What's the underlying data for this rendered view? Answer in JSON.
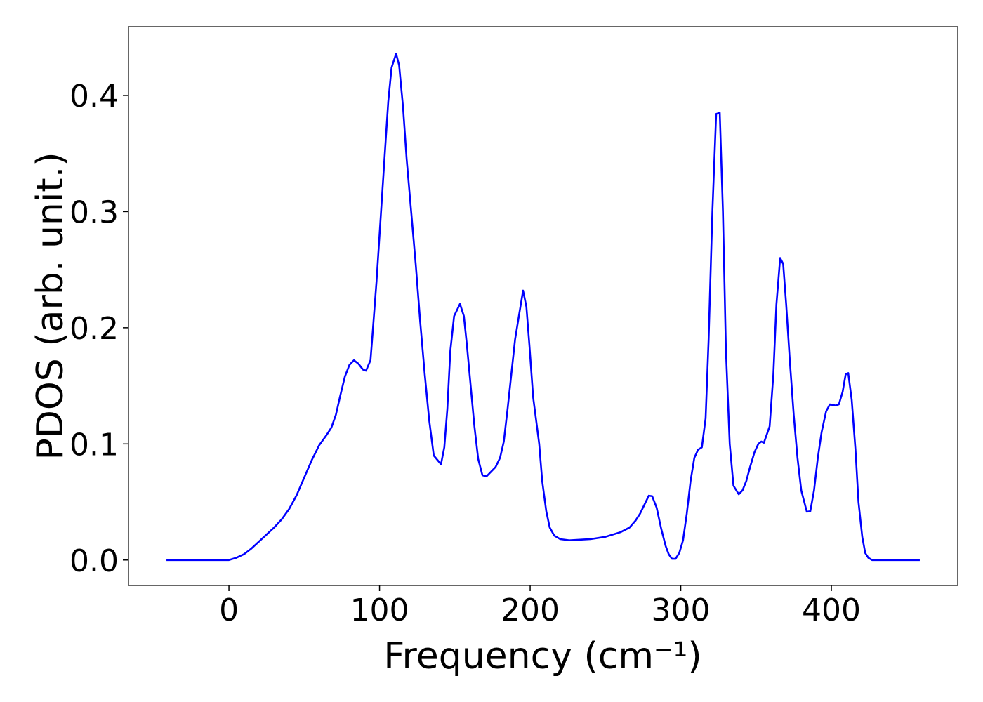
{
  "chart_data": {
    "type": "line",
    "x_label": "Frequency (cm⁻¹)",
    "y_label": "PDOS (arb. unit.)",
    "xlim": [
      -66.7,
      483.9
    ],
    "ylim": [
      -0.0219,
      0.4592
    ],
    "xticks": [
      0,
      100,
      200,
      300,
      400
    ],
    "yticks": [
      {
        "value": 0,
        "label": "0.0"
      },
      0.1,
      0.2,
      0.3,
      0.4
    ],
    "series": [
      {
        "name": "PDOS",
        "color": "#0000ff",
        "x": [
          -41.5,
          -20,
          0,
          5,
          10,
          15,
          20,
          25,
          30,
          35,
          40,
          45,
          50,
          55,
          60,
          65,
          68,
          71,
          74,
          77,
          80,
          83,
          86,
          89,
          91,
          94,
          95.5,
          98,
          101,
          103.5,
          105.8,
          108,
          111,
          113,
          115.6,
          118,
          121,
          124,
          127,
          130,
          133,
          136,
          140.8,
          143,
          145,
          147,
          149.5,
          153.4,
          156,
          158,
          160.5,
          163,
          165.5,
          168.3,
          171,
          174,
          177,
          180,
          182.5,
          185,
          187.5,
          190,
          192.5,
          195.3,
          197.5,
          199.5,
          202,
          206,
          208,
          210.7,
          213,
          216,
          220,
          226,
          240,
          250,
          260,
          266,
          270,
          273,
          276,
          278.8,
          281,
          284,
          287,
          290,
          292,
          294.2,
          296.5,
          299,
          301.5,
          304,
          306.5,
          309,
          311.5,
          314,
          316.5,
          318.5,
          321,
          323.5,
          325.9,
          328,
          330,
          332.5,
          335,
          338.5,
          341,
          343.5,
          346,
          349,
          351.5,
          353.5,
          355.2,
          359,
          361.5,
          363.5,
          366,
          368,
          370,
          372.5,
          375,
          377.5,
          380,
          383.7,
          386,
          388.5,
          391,
          393.5,
          396.5,
          399,
          402.8,
          405,
          407.5,
          409.5,
          411.2,
          413.5,
          416,
          418,
          420.5,
          422.5,
          424.5,
          427,
          440,
          458.7
        ],
        "values": [
          0,
          0,
          0,
          0.002,
          0.005,
          0.01,
          0.016,
          0.022,
          0.028,
          0.035,
          0.044,
          0.056,
          0.071,
          0.086,
          0.099,
          0.108,
          0.114,
          0.125,
          0.142,
          0.158,
          0.168,
          0.172,
          0.169,
          0.164,
          0.163,
          0.172,
          0.197,
          0.24,
          0.3,
          0.35,
          0.395,
          0.424,
          0.436,
          0.426,
          0.39,
          0.345,
          0.3,
          0.255,
          0.205,
          0.16,
          0.12,
          0.09,
          0.0825,
          0.097,
          0.13,
          0.18,
          0.21,
          0.2205,
          0.21,
          0.185,
          0.15,
          0.115,
          0.087,
          0.073,
          0.072,
          0.076,
          0.08,
          0.088,
          0.102,
          0.13,
          0.16,
          0.19,
          0.21,
          0.232,
          0.218,
          0.185,
          0.14,
          0.1,
          0.068,
          0.042,
          0.028,
          0.021,
          0.018,
          0.017,
          0.018,
          0.02,
          0.024,
          0.028,
          0.034,
          0.04,
          0.048,
          0.0554,
          0.055,
          0.045,
          0.027,
          0.012,
          0.005,
          0.001,
          0.001,
          0.006,
          0.017,
          0.04,
          0.068,
          0.088,
          0.095,
          0.097,
          0.122,
          0.19,
          0.3,
          0.384,
          0.385,
          0.3,
          0.18,
          0.1,
          0.064,
          0.0566,
          0.06,
          0.068,
          0.08,
          0.093,
          0.1,
          0.102,
          0.101,
          0.115,
          0.16,
          0.22,
          0.26,
          0.255,
          0.22,
          0.17,
          0.125,
          0.088,
          0.06,
          0.0416,
          0.042,
          0.06,
          0.088,
          0.11,
          0.128,
          0.134,
          0.133,
          0.134,
          0.145,
          0.16,
          0.161,
          0.138,
          0.095,
          0.05,
          0.02,
          0.006,
          0.002,
          0,
          0,
          0
        ]
      }
    ]
  }
}
